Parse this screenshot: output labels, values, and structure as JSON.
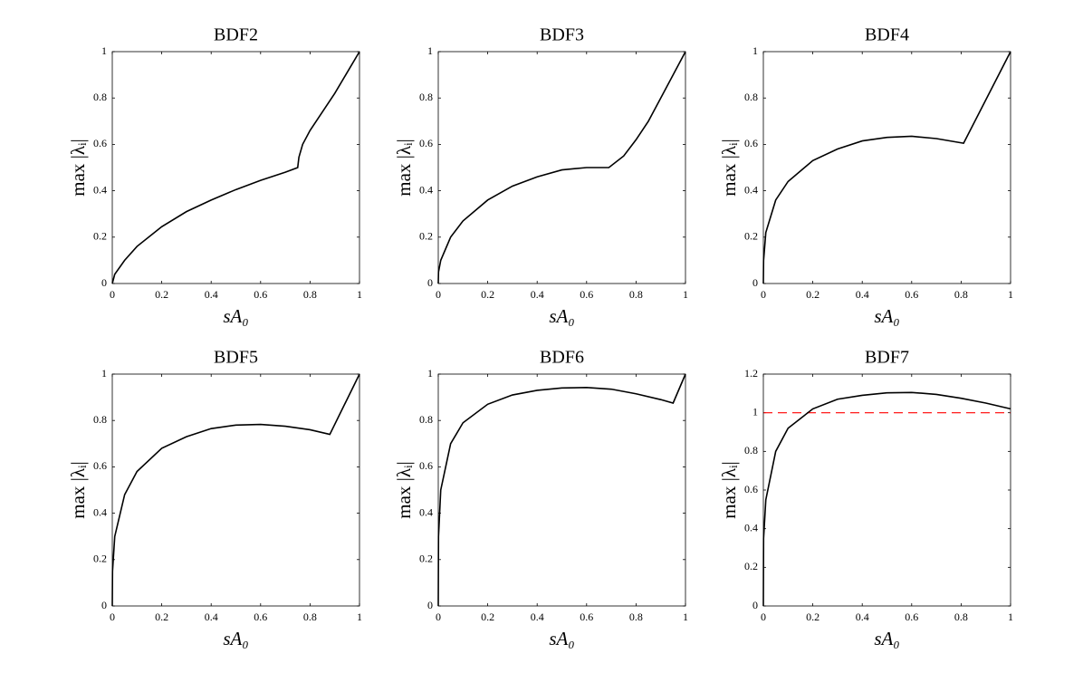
{
  "chart_data": [
    {
      "type": "line",
      "title": "BDF2",
      "xlabel": "sA₀",
      "ylabel": "max |λᵢ|",
      "xlim": [
        0,
        1
      ],
      "ylim": [
        0,
        1
      ],
      "xticks": [
        0,
        0.2,
        0.4,
        0.6,
        0.8,
        1
      ],
      "yticks": [
        0,
        0.2,
        0.4,
        0.6,
        0.8,
        1
      ],
      "x": [
        0,
        0.01,
        0.05,
        0.1,
        0.2,
        0.3,
        0.4,
        0.5,
        0.6,
        0.7,
        0.75,
        0.755,
        0.77,
        0.8,
        0.85,
        0.9,
        0.95,
        1
      ],
      "series": [
        {
          "color": "#000000",
          "values": [
            0,
            0.04,
            0.1,
            0.16,
            0.245,
            0.31,
            0.36,
            0.405,
            0.445,
            0.48,
            0.5,
            0.545,
            0.6,
            0.66,
            0.74,
            0.82,
            0.91,
            1
          ]
        }
      ]
    },
    {
      "type": "line",
      "title": "BDF3",
      "xlabel": "sA₀",
      "ylabel": "max |λᵢ|",
      "xlim": [
        0,
        1
      ],
      "ylim": [
        0,
        1
      ],
      "xticks": [
        0,
        0.2,
        0.4,
        0.6,
        0.8,
        1
      ],
      "yticks": [
        0,
        0.2,
        0.4,
        0.6,
        0.8,
        1
      ],
      "x": [
        0,
        0.001,
        0.01,
        0.05,
        0.1,
        0.2,
        0.3,
        0.4,
        0.5,
        0.6,
        0.65,
        0.69,
        0.75,
        0.8,
        0.85,
        0.9,
        0.95,
        1
      ],
      "series": [
        {
          "color": "#000000",
          "values": [
            0,
            0.05,
            0.1,
            0.2,
            0.27,
            0.36,
            0.42,
            0.46,
            0.49,
            0.5,
            0.5,
            0.5,
            0.55,
            0.62,
            0.7,
            0.8,
            0.9,
            1
          ]
        }
      ]
    },
    {
      "type": "line",
      "title": "BDF4",
      "xlabel": "sA₀",
      "ylabel": "max |λᵢ|",
      "xlim": [
        0,
        1
      ],
      "ylim": [
        0,
        1
      ],
      "xticks": [
        0,
        0.2,
        0.4,
        0.6,
        0.8,
        1
      ],
      "yticks": [
        0,
        0.2,
        0.4,
        0.6,
        0.8,
        1
      ],
      "x": [
        0,
        0.001,
        0.01,
        0.05,
        0.1,
        0.2,
        0.3,
        0.4,
        0.5,
        0.6,
        0.7,
        0.81,
        1
      ],
      "series": [
        {
          "color": "#000000",
          "values": [
            0,
            0.1,
            0.22,
            0.36,
            0.44,
            0.53,
            0.58,
            0.615,
            0.63,
            0.635,
            0.625,
            0.605,
            1
          ]
        }
      ]
    },
    {
      "type": "line",
      "title": "BDF5",
      "xlabel": "sA₀",
      "ylabel": "max |λᵢ|",
      "xlim": [
        0,
        1
      ],
      "ylim": [
        0,
        1
      ],
      "xticks": [
        0,
        0.2,
        0.4,
        0.6,
        0.8,
        1
      ],
      "yticks": [
        0,
        0.2,
        0.4,
        0.6,
        0.8,
        1
      ],
      "x": [
        0,
        0.001,
        0.01,
        0.05,
        0.1,
        0.2,
        0.3,
        0.4,
        0.5,
        0.6,
        0.7,
        0.8,
        0.88,
        1
      ],
      "series": [
        {
          "color": "#000000",
          "values": [
            0,
            0.15,
            0.3,
            0.48,
            0.58,
            0.68,
            0.73,
            0.765,
            0.78,
            0.783,
            0.775,
            0.76,
            0.74,
            1
          ]
        }
      ]
    },
    {
      "type": "line",
      "title": "BDF6",
      "xlabel": "sA₀",
      "ylabel": "max |λᵢ|",
      "xlim": [
        0,
        1
      ],
      "ylim": [
        0,
        1
      ],
      "xticks": [
        0,
        0.2,
        0.4,
        0.6,
        0.8,
        1
      ],
      "yticks": [
        0,
        0.2,
        0.4,
        0.6,
        0.8,
        1
      ],
      "x": [
        0,
        0.001,
        0.01,
        0.05,
        0.1,
        0.2,
        0.3,
        0.4,
        0.5,
        0.6,
        0.7,
        0.8,
        0.9,
        0.95,
        1
      ],
      "series": [
        {
          "color": "#000000",
          "values": [
            0,
            0.3,
            0.5,
            0.7,
            0.79,
            0.87,
            0.91,
            0.93,
            0.94,
            0.942,
            0.935,
            0.915,
            0.89,
            0.875,
            1
          ]
        }
      ]
    },
    {
      "type": "line",
      "title": "BDF7",
      "xlabel": "sA₀",
      "ylabel": "max |λᵢ|",
      "xlim": [
        0,
        1
      ],
      "ylim": [
        0,
        1.2
      ],
      "xticks": [
        0,
        0.2,
        0.4,
        0.6,
        0.8,
        1
      ],
      "yticks": [
        0,
        0.2,
        0.4,
        0.6,
        0.8,
        1,
        1.2
      ],
      "x": [
        0,
        0.001,
        0.01,
        0.05,
        0.1,
        0.2,
        0.3,
        0.4,
        0.5,
        0.6,
        0.7,
        0.8,
        0.9,
        1
      ],
      "series": [
        {
          "color": "#000000",
          "values": [
            0,
            0.35,
            0.55,
            0.8,
            0.92,
            1.02,
            1.07,
            1.09,
            1.103,
            1.105,
            1.095,
            1.075,
            1.05,
            1.02
          ]
        }
      ],
      "hline": {
        "value": 1,
        "color": "#ff0000",
        "dashed": true
      }
    }
  ]
}
